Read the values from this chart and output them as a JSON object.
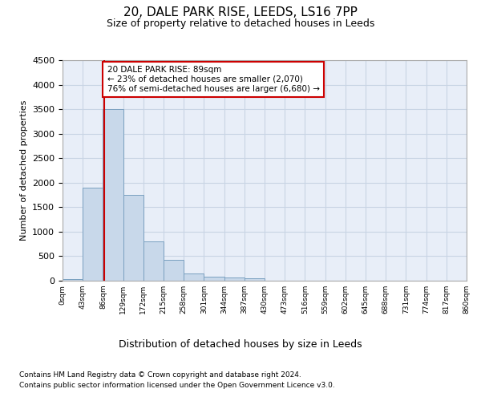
{
  "title_line1": "20, DALE PARK RISE, LEEDS, LS16 7PP",
  "title_line2": "Size of property relative to detached houses in Leeds",
  "xlabel": "Distribution of detached houses by size in Leeds",
  "ylabel": "Number of detached properties",
  "bar_edges": [
    0,
    43,
    86,
    129,
    172,
    215,
    258,
    301,
    344,
    387,
    430,
    473,
    516,
    559,
    602,
    645,
    688,
    731,
    774,
    817,
    860
  ],
  "bar_heights": [
    30,
    1900,
    3500,
    1750,
    800,
    430,
    150,
    90,
    60,
    45,
    0,
    0,
    0,
    0,
    0,
    0,
    0,
    0,
    0,
    0
  ],
  "bar_color": "#c8d8ea",
  "bar_edge_color": "#7aa0c0",
  "grid_color": "#c8d4e4",
  "background_color": "#e8eef8",
  "vline_x": 89,
  "vline_color": "#cc0000",
  "annotation_text": "20 DALE PARK RISE: 89sqm\n← 23% of detached houses are smaller (2,070)\n76% of semi-detached houses are larger (6,680) →",
  "annotation_box_color": "#ffffff",
  "annotation_box_edge": "#cc0000",
  "ylim": [
    0,
    4500
  ],
  "yticks": [
    0,
    500,
    1000,
    1500,
    2000,
    2500,
    3000,
    3500,
    4000,
    4500
  ],
  "tick_labels": [
    "0sqm",
    "43sqm",
    "86sqm",
    "129sqm",
    "172sqm",
    "215sqm",
    "258sqm",
    "301sqm",
    "344sqm",
    "387sqm",
    "430sqm",
    "473sqm",
    "516sqm",
    "559sqm",
    "602sqm",
    "645sqm",
    "688sqm",
    "731sqm",
    "774sqm",
    "817sqm",
    "860sqm"
  ],
  "footnote1": "Contains HM Land Registry data © Crown copyright and database right 2024.",
  "footnote2": "Contains public sector information licensed under the Open Government Licence v3.0."
}
